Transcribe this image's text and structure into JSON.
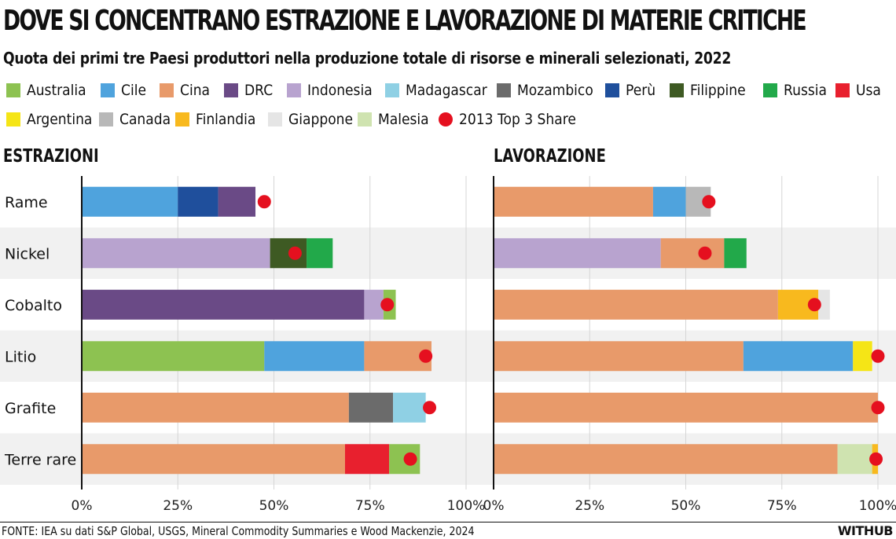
{
  "header": {
    "title": "DOVE SI CONCENTRANO ESTRAZIONE E LAVORAZIONE DI MATERIE CRITICHE",
    "subtitle": "Quota dei primi tre Paesi produttori nella produzione totale di risorse e minerali selezionati, 2022"
  },
  "legend": [
    {
      "label": "Australia",
      "color": "#8dc251",
      "kind": "swatch"
    },
    {
      "label": "Cile",
      "color": "#4fa3dd",
      "kind": "swatch"
    },
    {
      "label": "Cina",
      "color": "#e89a6a",
      "kind": "swatch"
    },
    {
      "label": "DRC",
      "color": "#6a4a86",
      "kind": "swatch"
    },
    {
      "label": "Indonesia",
      "color": "#b8a3cf",
      "kind": "swatch"
    },
    {
      "label": "Madagascar",
      "color": "#8fd0e4",
      "kind": "swatch"
    },
    {
      "label": "Mozambico",
      "color": "#6b6b6b",
      "kind": "swatch"
    },
    {
      "label": "Perù",
      "color": "#1f4f9c",
      "kind": "swatch"
    },
    {
      "label": "Filippine",
      "color": "#3e5a23",
      "kind": "swatch"
    },
    {
      "label": "Russia",
      "color": "#22a94a",
      "kind": "swatch"
    },
    {
      "label": "Usa",
      "color": "#e8202e",
      "kind": "swatch"
    },
    {
      "label": "Argentina",
      "color": "#f5e516",
      "kind": "swatch"
    },
    {
      "label": "Canada",
      "color": "#b8b8b8",
      "kind": "swatch"
    },
    {
      "label": "Finlandia",
      "color": "#f8b91e",
      "kind": "swatch"
    },
    {
      "label": "Giappone",
      "color": "#e5e5e5",
      "kind": "swatch"
    },
    {
      "label": "Malesia",
      "color": "#cfe3b0",
      "kind": "swatch"
    },
    {
      "label": "2013 Top 3 Share",
      "color": "#e5101f",
      "kind": "dot"
    }
  ],
  "chart_data": [
    {
      "type": "bar",
      "orientation": "horizontal",
      "stacked": true,
      "title": "ESTRAZIONI",
      "categories": [
        "Rame",
        "Nickel",
        "Cobalto",
        "Litio",
        "Grafite",
        "Terre rare"
      ],
      "xlim": [
        0,
        100
      ],
      "x_ticks": [
        "0%",
        "25%",
        "50%",
        "75%",
        "100%"
      ],
      "bars": [
        {
          "category": "Rame",
          "segments": [
            {
              "country": "Cile",
              "value": 25
            },
            {
              "country": "Perù",
              "value": 10.5
            },
            {
              "country": "DRC",
              "value": 9.7
            }
          ],
          "top3_2013": 47.5
        },
        {
          "category": "Nickel",
          "segments": [
            {
              "country": "Indonesia",
              "value": 49
            },
            {
              "country": "Filippine",
              "value": 9.5
            },
            {
              "country": "Russia",
              "value": 6.8
            }
          ],
          "top3_2013": 55.5
        },
        {
          "category": "Cobalto",
          "segments": [
            {
              "country": "DRC",
              "value": 73.5
            },
            {
              "country": "Indonesia",
              "value": 5
            },
            {
              "country": "Australia",
              "value": 3.2
            }
          ],
          "top3_2013": 79.5
        },
        {
          "category": "Litio",
          "segments": [
            {
              "country": "Australia",
              "value": 47.5
            },
            {
              "country": "Cile",
              "value": 26
            },
            {
              "country": "Cina",
              "value": 17.5
            }
          ],
          "top3_2013": 89.5
        },
        {
          "category": "Grafite",
          "segments": [
            {
              "country": "Cina",
              "value": 69.5
            },
            {
              "country": "Mozambico",
              "value": 11.5
            },
            {
              "country": "Madagascar",
              "value": 8.5
            }
          ],
          "top3_2013": 90.5
        },
        {
          "category": "Terre rare",
          "segments": [
            {
              "country": "Cina",
              "value": 68.5
            },
            {
              "country": "Usa",
              "value": 11.5
            },
            {
              "country": "Australia",
              "value": 8
            }
          ],
          "top3_2013": 85.5
        }
      ]
    },
    {
      "type": "bar",
      "orientation": "horizontal",
      "stacked": true,
      "title": "LAVORAZIONE",
      "categories": [
        "Rame",
        "Nickel",
        "Cobalto",
        "Litio",
        "Grafite",
        "Terre rare"
      ],
      "xlim": [
        0,
        100
      ],
      "x_ticks": [
        "0%",
        "25%",
        "50%",
        "75%",
        "100%"
      ],
      "bars": [
        {
          "category": "Rame",
          "segments": [
            {
              "country": "Cina",
              "value": 41.5
            },
            {
              "country": "Cile",
              "value": 8.5
            },
            {
              "country": "Canada",
              "value": 6.5
            }
          ],
          "top3_2013": 56
        },
        {
          "category": "Nickel",
          "segments": [
            {
              "country": "Indonesia",
              "value": 43.5
            },
            {
              "country": "Cina",
              "value": 16.5
            },
            {
              "country": "Russia",
              "value": 5.8
            }
          ],
          "top3_2013": 55
        },
        {
          "category": "Cobalto",
          "segments": [
            {
              "country": "Cina",
              "value": 74
            },
            {
              "country": "Finlandia",
              "value": 10.5
            },
            {
              "country": "Giappone",
              "value": 3
            }
          ],
          "top3_2013": 83.5
        },
        {
          "category": "Litio",
          "segments": [
            {
              "country": "Cina",
              "value": 65
            },
            {
              "country": "Cile",
              "value": 28.5
            },
            {
              "country": "Argentina",
              "value": 5
            }
          ],
          "top3_2013": 100
        },
        {
          "category": "Grafite",
          "segments": [
            {
              "country": "Cina",
              "value": 100
            }
          ],
          "top3_2013": 100
        },
        {
          "category": "Terre rare",
          "segments": [
            {
              "country": "Cina",
              "value": 89.5
            },
            {
              "country": "Malesia",
              "value": 9
            },
            {
              "country": "Finlandia",
              "value": 1.5
            }
          ],
          "top3_2013": 99.5
        }
      ]
    }
  ],
  "footer": {
    "source": "FONTE: IEA su dati S&P Global, USGS, Mineral Commodity Summaries e Wood Mackenzie, 2024",
    "brand": "WITHUB"
  }
}
